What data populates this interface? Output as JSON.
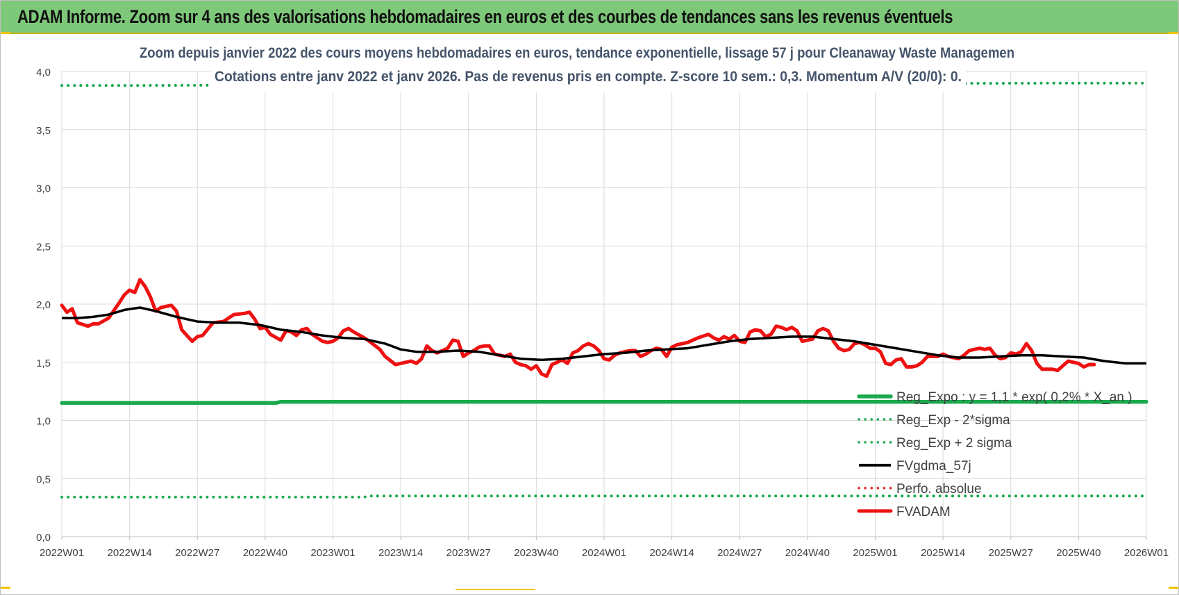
{
  "banner": {
    "title": "ADAM Informe. Zoom sur 4 ans des valorisations hebdomadaires en euros et des courbes de tendances sans les revenus éventuels"
  },
  "colors": {
    "banner": "#7ec87a",
    "reg_expo": "#1aa94d",
    "sigma": "#1aa94d",
    "fvgdma": "#000000",
    "perfo": "#e02020",
    "fvadam": "#ee1111"
  },
  "chart_data": {
    "type": "line",
    "title": "Zoom depuis janvier 2022 des cours moyens hebdomadaires en euros, tendance exponentielle, lissage 57 j pour Cleanaway Waste Managemen",
    "subtitle": "Cotations entre janv 2022 et janv 2026. Pas de revenus pris en compte. Z-score 10 sem.: 0,3. Momentum A/V (20/0): 0.",
    "xlabel": "",
    "ylabel": "",
    "ylim": [
      0,
      4
    ],
    "y_ticks": [
      "0,0",
      "0,5",
      "1,0",
      "1,5",
      "2,0",
      "2,5",
      "3,0",
      "3,5",
      "4,0"
    ],
    "x_ticks": [
      "2022W01",
      "2022W14",
      "2022W27",
      "2022W40",
      "2023W01",
      "2023W14",
      "2023W27",
      "2023W40",
      "2024W01",
      "2024W14",
      "2024W27",
      "2024W40",
      "2025W01",
      "2025W14",
      "2025W27",
      "2025W40",
      "2026W01"
    ],
    "x_tick_weeks": [
      0,
      13,
      26,
      39,
      52,
      65,
      78,
      91,
      104,
      117,
      130,
      143,
      156,
      169,
      182,
      195,
      208
    ],
    "grid": true,
    "legend_position": "bottom-right",
    "series": [
      {
        "name": "Reg_Expo : y = 1,1 * exp( 0,2% *  X_an )",
        "style": "solid-thick",
        "points": [
          [
            0,
            1.15
          ],
          [
            41,
            1.15
          ],
          [
            42,
            1.16
          ],
          [
            208,
            1.16
          ]
        ]
      },
      {
        "name": "Reg_Exp - 2*sigma",
        "style": "dotted",
        "points": [
          [
            0,
            0.34
          ],
          [
            58,
            0.34
          ],
          [
            59,
            0.35
          ],
          [
            208,
            0.35
          ]
        ]
      },
      {
        "name": "Reg_Exp + 2 sigma",
        "style": "dotted",
        "points": [
          [
            0,
            3.88
          ],
          [
            14,
            3.88
          ],
          [
            188,
            3.9
          ],
          [
            208,
            3.9
          ]
        ]
      },
      {
        "name": "FVgdma_57j",
        "style": "solid",
        "points": [
          [
            0,
            1.88
          ],
          [
            3,
            1.88
          ],
          [
            6,
            1.89
          ],
          [
            9,
            1.91
          ],
          [
            12,
            1.95
          ],
          [
            15,
            1.97
          ],
          [
            18,
            1.94
          ],
          [
            22,
            1.89
          ],
          [
            26,
            1.85
          ],
          [
            30,
            1.84
          ],
          [
            34,
            1.84
          ],
          [
            38,
            1.82
          ],
          [
            42,
            1.78
          ],
          [
            46,
            1.76
          ],
          [
            50,
            1.73
          ],
          [
            54,
            1.71
          ],
          [
            58,
            1.7
          ],
          [
            62,
            1.66
          ],
          [
            65,
            1.61
          ],
          [
            68,
            1.59
          ],
          [
            72,
            1.59
          ],
          [
            76,
            1.6
          ],
          [
            80,
            1.59
          ],
          [
            84,
            1.56
          ],
          [
            88,
            1.53
          ],
          [
            92,
            1.52
          ],
          [
            96,
            1.53
          ],
          [
            100,
            1.55
          ],
          [
            104,
            1.57
          ],
          [
            108,
            1.58
          ],
          [
            112,
            1.6
          ],
          [
            116,
            1.61
          ],
          [
            120,
            1.62
          ],
          [
            124,
            1.65
          ],
          [
            128,
            1.68
          ],
          [
            132,
            1.7
          ],
          [
            136,
            1.71
          ],
          [
            140,
            1.72
          ],
          [
            144,
            1.72
          ],
          [
            148,
            1.7
          ],
          [
            152,
            1.68
          ],
          [
            156,
            1.65
          ],
          [
            160,
            1.62
          ],
          [
            164,
            1.59
          ],
          [
            168,
            1.56
          ],
          [
            172,
            1.54
          ],
          [
            176,
            1.54
          ],
          [
            180,
            1.55
          ],
          [
            184,
            1.56
          ],
          [
            188,
            1.56
          ],
          [
            192,
            1.55
          ],
          [
            196,
            1.54
          ],
          [
            200,
            1.51
          ],
          [
            204,
            1.49
          ],
          [
            208,
            1.49
          ]
        ]
      },
      {
        "name": "Perfo. absolue",
        "style": "dotted",
        "points": []
      },
      {
        "name": "FVADAM",
        "style": "solid-thick",
        "points": [
          [
            0,
            1.99
          ],
          [
            1,
            1.93
          ],
          [
            2,
            1.96
          ],
          [
            3,
            1.84
          ],
          [
            5,
            1.81
          ],
          [
            6,
            1.83
          ],
          [
            7,
            1.83
          ],
          [
            9,
            1.88
          ],
          [
            11,
            2.01
          ],
          [
            12,
            2.08
          ],
          [
            13,
            2.12
          ],
          [
            14,
            2.1
          ],
          [
            15,
            2.21
          ],
          [
            16,
            2.15
          ],
          [
            17,
            2.06
          ],
          [
            18,
            1.94
          ],
          [
            19,
            1.97
          ],
          [
            21,
            1.99
          ],
          [
            22,
            1.94
          ],
          [
            23,
            1.78
          ],
          [
            25,
            1.68
          ],
          [
            26,
            1.72
          ],
          [
            27,
            1.73
          ],
          [
            29,
            1.84
          ],
          [
            31,
            1.85
          ],
          [
            33,
            1.91
          ],
          [
            35,
            1.92
          ],
          [
            36,
            1.93
          ],
          [
            37,
            1.87
          ],
          [
            38,
            1.79
          ],
          [
            39,
            1.8
          ],
          [
            40,
            1.74
          ],
          [
            42,
            1.69
          ],
          [
            43,
            1.77
          ],
          [
            44,
            1.76
          ],
          [
            45,
            1.73
          ],
          [
            46,
            1.78
          ],
          [
            47,
            1.79
          ],
          [
            48,
            1.74
          ],
          [
            50,
            1.68
          ],
          [
            51,
            1.67
          ],
          [
            52,
            1.68
          ],
          [
            53,
            1.71
          ],
          [
            54,
            1.77
          ],
          [
            55,
            1.79
          ],
          [
            56,
            1.76
          ],
          [
            58,
            1.71
          ],
          [
            59,
            1.68
          ],
          [
            61,
            1.61
          ],
          [
            62,
            1.55
          ],
          [
            64,
            1.48
          ],
          [
            65,
            1.49
          ],
          [
            66,
            1.5
          ],
          [
            67,
            1.51
          ],
          [
            68,
            1.49
          ],
          [
            69,
            1.53
          ],
          [
            70,
            1.64
          ],
          [
            71,
            1.6
          ],
          [
            72,
            1.58
          ],
          [
            73,
            1.6
          ],
          [
            74,
            1.62
          ],
          [
            75,
            1.69
          ],
          [
            76,
            1.68
          ],
          [
            77,
            1.55
          ],
          [
            78,
            1.58
          ],
          [
            79,
            1.6
          ],
          [
            80,
            1.63
          ],
          [
            81,
            1.64
          ],
          [
            82,
            1.64
          ],
          [
            83,
            1.57
          ],
          [
            84,
            1.56
          ],
          [
            85,
            1.55
          ],
          [
            86,
            1.57
          ],
          [
            87,
            1.5
          ],
          [
            88,
            1.48
          ],
          [
            89,
            1.47
          ],
          [
            90,
            1.44
          ],
          [
            91,
            1.47
          ],
          [
            92,
            1.4
          ],
          [
            93,
            1.38
          ],
          [
            94,
            1.48
          ],
          [
            95,
            1.5
          ],
          [
            96,
            1.52
          ],
          [
            97,
            1.49
          ],
          [
            98,
            1.58
          ],
          [
            99,
            1.6
          ],
          [
            100,
            1.64
          ],
          [
            101,
            1.66
          ],
          [
            102,
            1.64
          ],
          [
            103,
            1.6
          ],
          [
            104,
            1.53
          ],
          [
            105,
            1.52
          ],
          [
            106,
            1.56
          ],
          [
            107,
            1.58
          ],
          [
            109,
            1.6
          ],
          [
            110,
            1.6
          ],
          [
            111,
            1.55
          ],
          [
            112,
            1.57
          ],
          [
            113,
            1.6
          ],
          [
            114,
            1.62
          ],
          [
            115,
            1.61
          ],
          [
            116,
            1.55
          ],
          [
            117,
            1.63
          ],
          [
            118,
            1.65
          ],
          [
            120,
            1.67
          ],
          [
            122,
            1.71
          ],
          [
            124,
            1.74
          ],
          [
            125,
            1.71
          ],
          [
            126,
            1.69
          ],
          [
            127,
            1.72
          ],
          [
            128,
            1.7
          ],
          [
            129,
            1.73
          ],
          [
            130,
            1.68
          ],
          [
            131,
            1.67
          ],
          [
            132,
            1.76
          ],
          [
            133,
            1.78
          ],
          [
            134,
            1.77
          ],
          [
            135,
            1.72
          ],
          [
            136,
            1.74
          ],
          [
            137,
            1.81
          ],
          [
            138,
            1.8
          ],
          [
            139,
            1.78
          ],
          [
            140,
            1.8
          ],
          [
            141,
            1.77
          ],
          [
            142,
            1.68
          ],
          [
            143,
            1.69
          ],
          [
            144,
            1.7
          ],
          [
            145,
            1.77
          ],
          [
            146,
            1.79
          ],
          [
            147,
            1.77
          ],
          [
            148,
            1.68
          ],
          [
            149,
            1.62
          ],
          [
            150,
            1.6
          ],
          [
            151,
            1.61
          ],
          [
            152,
            1.66
          ],
          [
            153,
            1.67
          ],
          [
            154,
            1.65
          ],
          [
            155,
            1.62
          ],
          [
            156,
            1.62
          ],
          [
            157,
            1.59
          ],
          [
            158,
            1.49
          ],
          [
            159,
            1.48
          ],
          [
            160,
            1.52
          ],
          [
            161,
            1.53
          ],
          [
            162,
            1.46
          ],
          [
            163,
            1.46
          ],
          [
            164,
            1.47
          ],
          [
            165,
            1.5
          ],
          [
            166,
            1.55
          ],
          [
            167,
            1.55
          ],
          [
            168,
            1.55
          ],
          [
            169,
            1.57
          ],
          [
            170,
            1.55
          ],
          [
            171,
            1.54
          ],
          [
            172,
            1.53
          ],
          [
            173,
            1.56
          ],
          [
            174,
            1.6
          ],
          [
            175,
            1.61
          ],
          [
            176,
            1.62
          ],
          [
            177,
            1.61
          ],
          [
            178,
            1.62
          ],
          [
            179,
            1.56
          ],
          [
            180,
            1.53
          ],
          [
            181,
            1.54
          ],
          [
            182,
            1.58
          ],
          [
            183,
            1.57
          ],
          [
            184,
            1.59
          ],
          [
            185,
            1.66
          ],
          [
            186,
            1.6
          ],
          [
            187,
            1.49
          ],
          [
            188,
            1.44
          ],
          [
            189,
            1.44
          ],
          [
            190,
            1.44
          ],
          [
            191,
            1.43
          ],
          [
            192,
            1.47
          ],
          [
            193,
            1.51
          ],
          [
            194,
            1.5
          ],
          [
            195,
            1.49
          ],
          [
            196,
            1.46
          ],
          [
            197,
            1.48
          ],
          [
            198,
            1.48
          ]
        ]
      }
    ]
  }
}
